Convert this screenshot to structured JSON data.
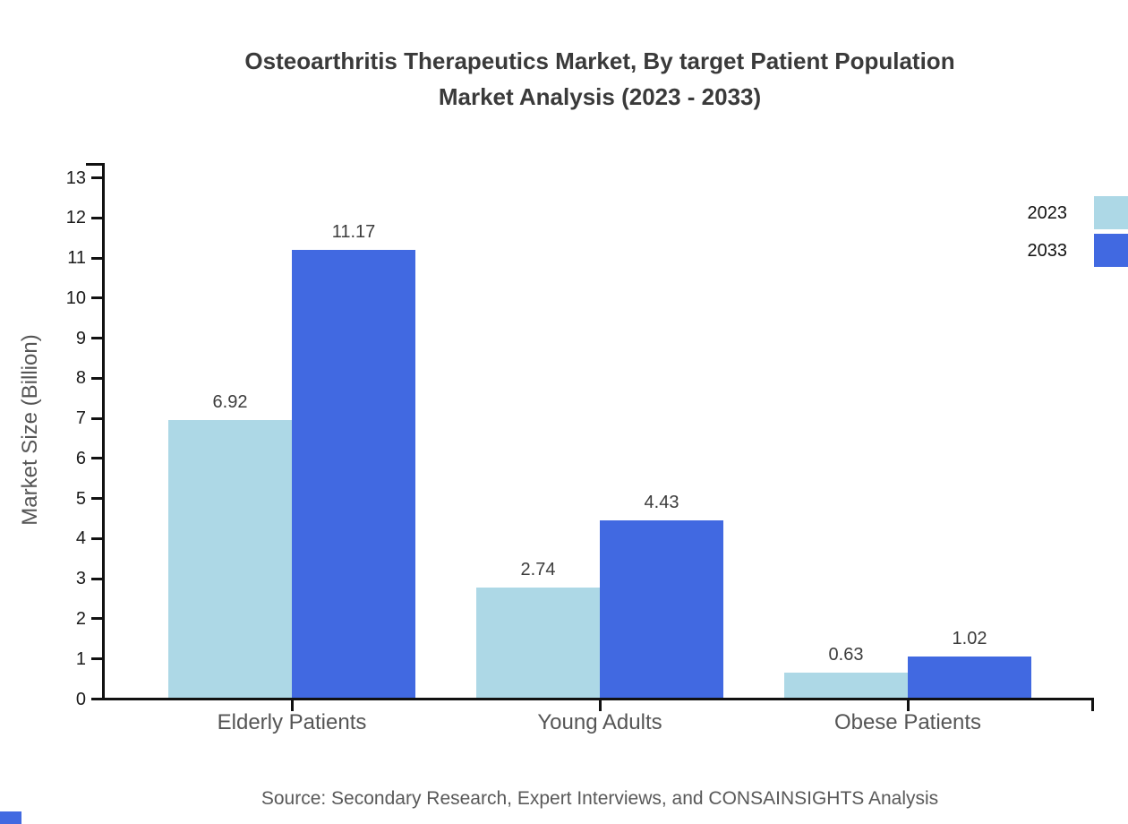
{
  "title": {
    "line1": "Osteoarthritis Therapeutics Market, By target Patient Population",
    "line2": "Market Analysis (2023 - 2033)"
  },
  "source": "Source: Secondary Research, Expert Interviews, and CONSAINSIGHTS Analysis",
  "chart_data": {
    "type": "bar",
    "title": "Osteoarthritis Therapeutics Market, By target Patient Population Market Analysis (2023 - 2033)",
    "categories": [
      "Elderly Patients",
      "Young Adults",
      "Obese Patients"
    ],
    "series": [
      {
        "name": "2023",
        "color": "#ADD8E6",
        "values": [
          6.92,
          2.74,
          0.63
        ]
      },
      {
        "name": "2033",
        "color": "#4169E1",
        "values": [
          11.17,
          4.43,
          1.02
        ]
      }
    ],
    "xlabel": "",
    "ylabel": "Market Size (Billion)",
    "ylim": [
      0,
      13
    ],
    "yticks": [
      0,
      1,
      2,
      3,
      4,
      5,
      6,
      7,
      8,
      9,
      10,
      11,
      12,
      13
    ],
    "grid": false,
    "legend_position": "top-right",
    "value_labels": true
  },
  "legend": {
    "items": [
      {
        "label": "2023",
        "color": "#ADD8E6"
      },
      {
        "label": "2033",
        "color": "#4169E1"
      }
    ]
  },
  "colors": {
    "axis": "#111111",
    "title_text": "#3a3a3a",
    "category_text": "#555555",
    "tick_text": "#1a1a1a",
    "value_text": "#3c3c3c",
    "source_text": "#595959",
    "corner_mark": "#4169E1",
    "background": "#ffffff"
  }
}
